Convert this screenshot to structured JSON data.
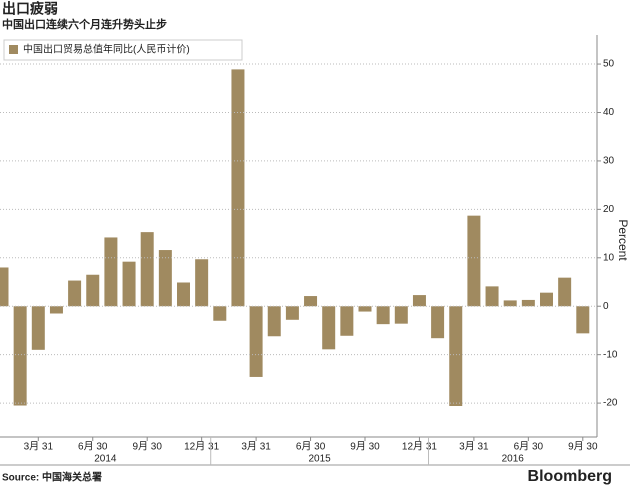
{
  "chart_data": {
    "type": "bar",
    "title": "出口疲弱",
    "subtitle": "中国出口连续六个月连升势头止步",
    "legend": "中国出口贸易总值年同比(人民币计价)",
    "ylabel": "Percent",
    "color": "#a08a60",
    "categories": [
      null,
      null,
      "3月 31",
      null,
      null,
      "6月 30",
      null,
      null,
      "9月 30",
      null,
      null,
      "12月 31",
      null,
      null,
      "3月 31",
      null,
      null,
      "6月 30",
      null,
      null,
      "9月 30",
      null,
      null,
      "12月 31",
      null,
      null,
      "3月 31",
      null,
      null,
      "6月 30",
      null,
      null,
      "9月 30"
    ],
    "values": [
      8,
      -20.5,
      -9,
      -1.5,
      5.3,
      6.5,
      14.2,
      9.2,
      15.3,
      11.6,
      4.9,
      9.7,
      -3,
      48.9,
      -14.6,
      -6.2,
      -2.8,
      2.1,
      -8.9,
      -6.1,
      -1.1,
      -3.7,
      -3.6,
      2.3,
      -6.6,
      -20.6,
      18.7,
      4.1,
      1.2,
      1.3,
      2.8,
      5.9,
      -5.6
    ],
    "years": [
      "2014",
      "2015",
      "2016"
    ],
    "ylim": [
      -27,
      56
    ],
    "yticks": [
      -20,
      -10,
      0,
      10,
      20,
      30,
      40,
      50
    ],
    "grid": true,
    "source": "Source: 中国海关总署",
    "brand": "Bloomberg"
  }
}
